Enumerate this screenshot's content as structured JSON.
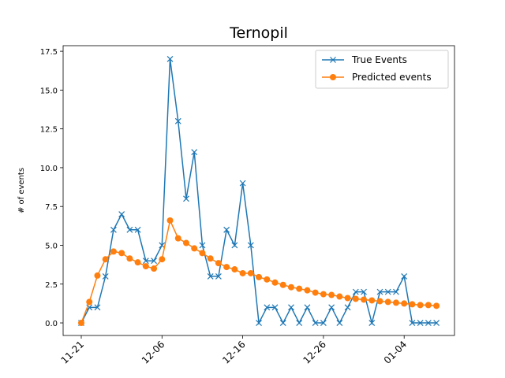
{
  "chart_data": {
    "type": "line",
    "title": "Ternopil",
    "y_label": "# of events",
    "categories": [
      "11-21",
      null,
      null,
      null,
      null,
      null,
      null,
      null,
      null,
      null,
      "12-06",
      null,
      null,
      null,
      null,
      null,
      null,
      null,
      null,
      null,
      "12-16",
      null,
      null,
      null,
      null,
      null,
      null,
      null,
      null,
      null,
      "12-26",
      null,
      null,
      null,
      null,
      null,
      null,
      null,
      null,
      null,
      "01-04",
      null,
      null,
      null,
      null
    ],
    "series": [
      {
        "name": "True Events",
        "color": "#1f77b4",
        "marker": "x",
        "values": [
          0,
          1,
          1,
          3,
          6,
          7,
          6,
          6,
          4,
          4,
          5,
          17,
          13,
          8,
          11,
          5,
          3,
          3,
          6,
          5,
          9,
          5,
          0,
          1,
          1,
          0,
          1,
          0,
          1,
          0,
          0,
          1,
          0,
          1,
          2,
          2,
          0,
          2,
          2,
          2,
          3,
          0,
          0,
          0,
          0
        ]
      },
      {
        "name": "Predicted events",
        "color": "#ff7f0e",
        "marker": "o",
        "values": [
          0,
          1.35,
          3.05,
          4.1,
          4.6,
          4.5,
          4.15,
          3.9,
          3.65,
          3.5,
          4.1,
          6.6,
          5.45,
          5.15,
          4.8,
          4.5,
          4.15,
          3.85,
          3.6,
          3.45,
          3.2,
          3.2,
          2.95,
          2.8,
          2.6,
          2.45,
          2.3,
          2.2,
          2.1,
          1.95,
          1.85,
          1.8,
          1.7,
          1.6,
          1.55,
          1.5,
          1.45,
          1.4,
          1.35,
          1.3,
          1.25,
          1.2,
          1.15,
          1.15,
          1.1
        ]
      }
    ],
    "ylim": [
      -0.81,
      17.86
    ],
    "yticks": [
      {
        "value": 0,
        "label": "0.0"
      },
      2.5,
      {
        "value": 5,
        "label": "5.0"
      },
      7.5,
      {
        "value": 10,
        "label": "10.0"
      },
      12.5,
      {
        "value": 15,
        "label": "15.0"
      },
      17.5
    ],
    "legend": "upper right",
    "grid": false
  }
}
